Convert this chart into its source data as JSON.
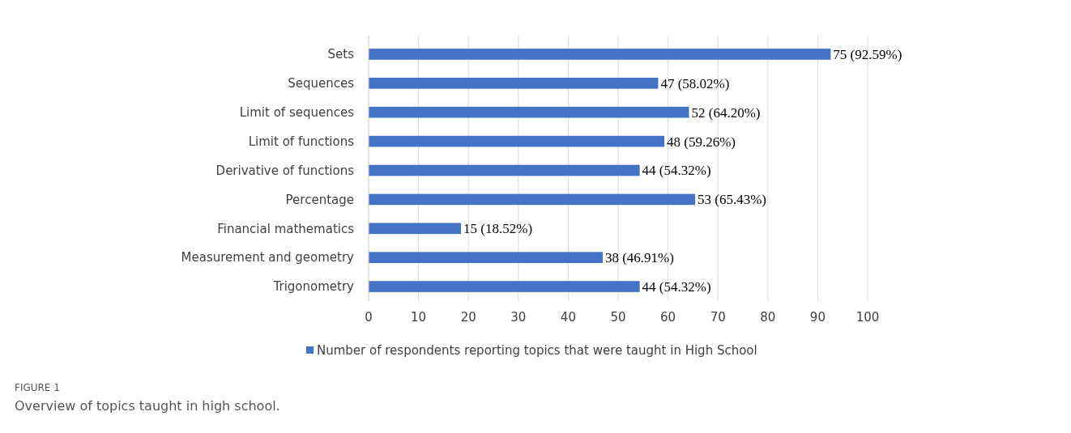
{
  "chart_data": {
    "type": "bar",
    "orientation": "horizontal",
    "categories": [
      "Sets",
      "Sequences",
      "Limit of sequences",
      "Limit of functions",
      "Derivative of functions",
      "Percentage",
      "Financial mathematics",
      "Measurement and geometry",
      "Trigonometry"
    ],
    "series": [
      {
        "name": "Number of respondents reporting topics that were taught in High School",
        "color": "#4472c4",
        "values": [
          92.59,
          58.02,
          64.2,
          59.26,
          54.32,
          65.43,
          18.52,
          46.91,
          54.32
        ],
        "value_labels": [
          "75 (92.59%)",
          "47 (58.02%)",
          "52 (64.20%)",
          "48 (59.26%)",
          "44 (54.32%)",
          "53 (65.43%)",
          "15 (18.52%)",
          "38 (46.91%)",
          "44 (54.32%)"
        ]
      }
    ],
    "xlim": [
      0,
      100
    ],
    "xticks": [
      0,
      10,
      20,
      30,
      40,
      50,
      60,
      70,
      80,
      90,
      100
    ],
    "grid": "x",
    "legend": "bottom",
    "annotations": [
      "FIGURE 1",
      "Overview of topics taught in high school."
    ]
  }
}
